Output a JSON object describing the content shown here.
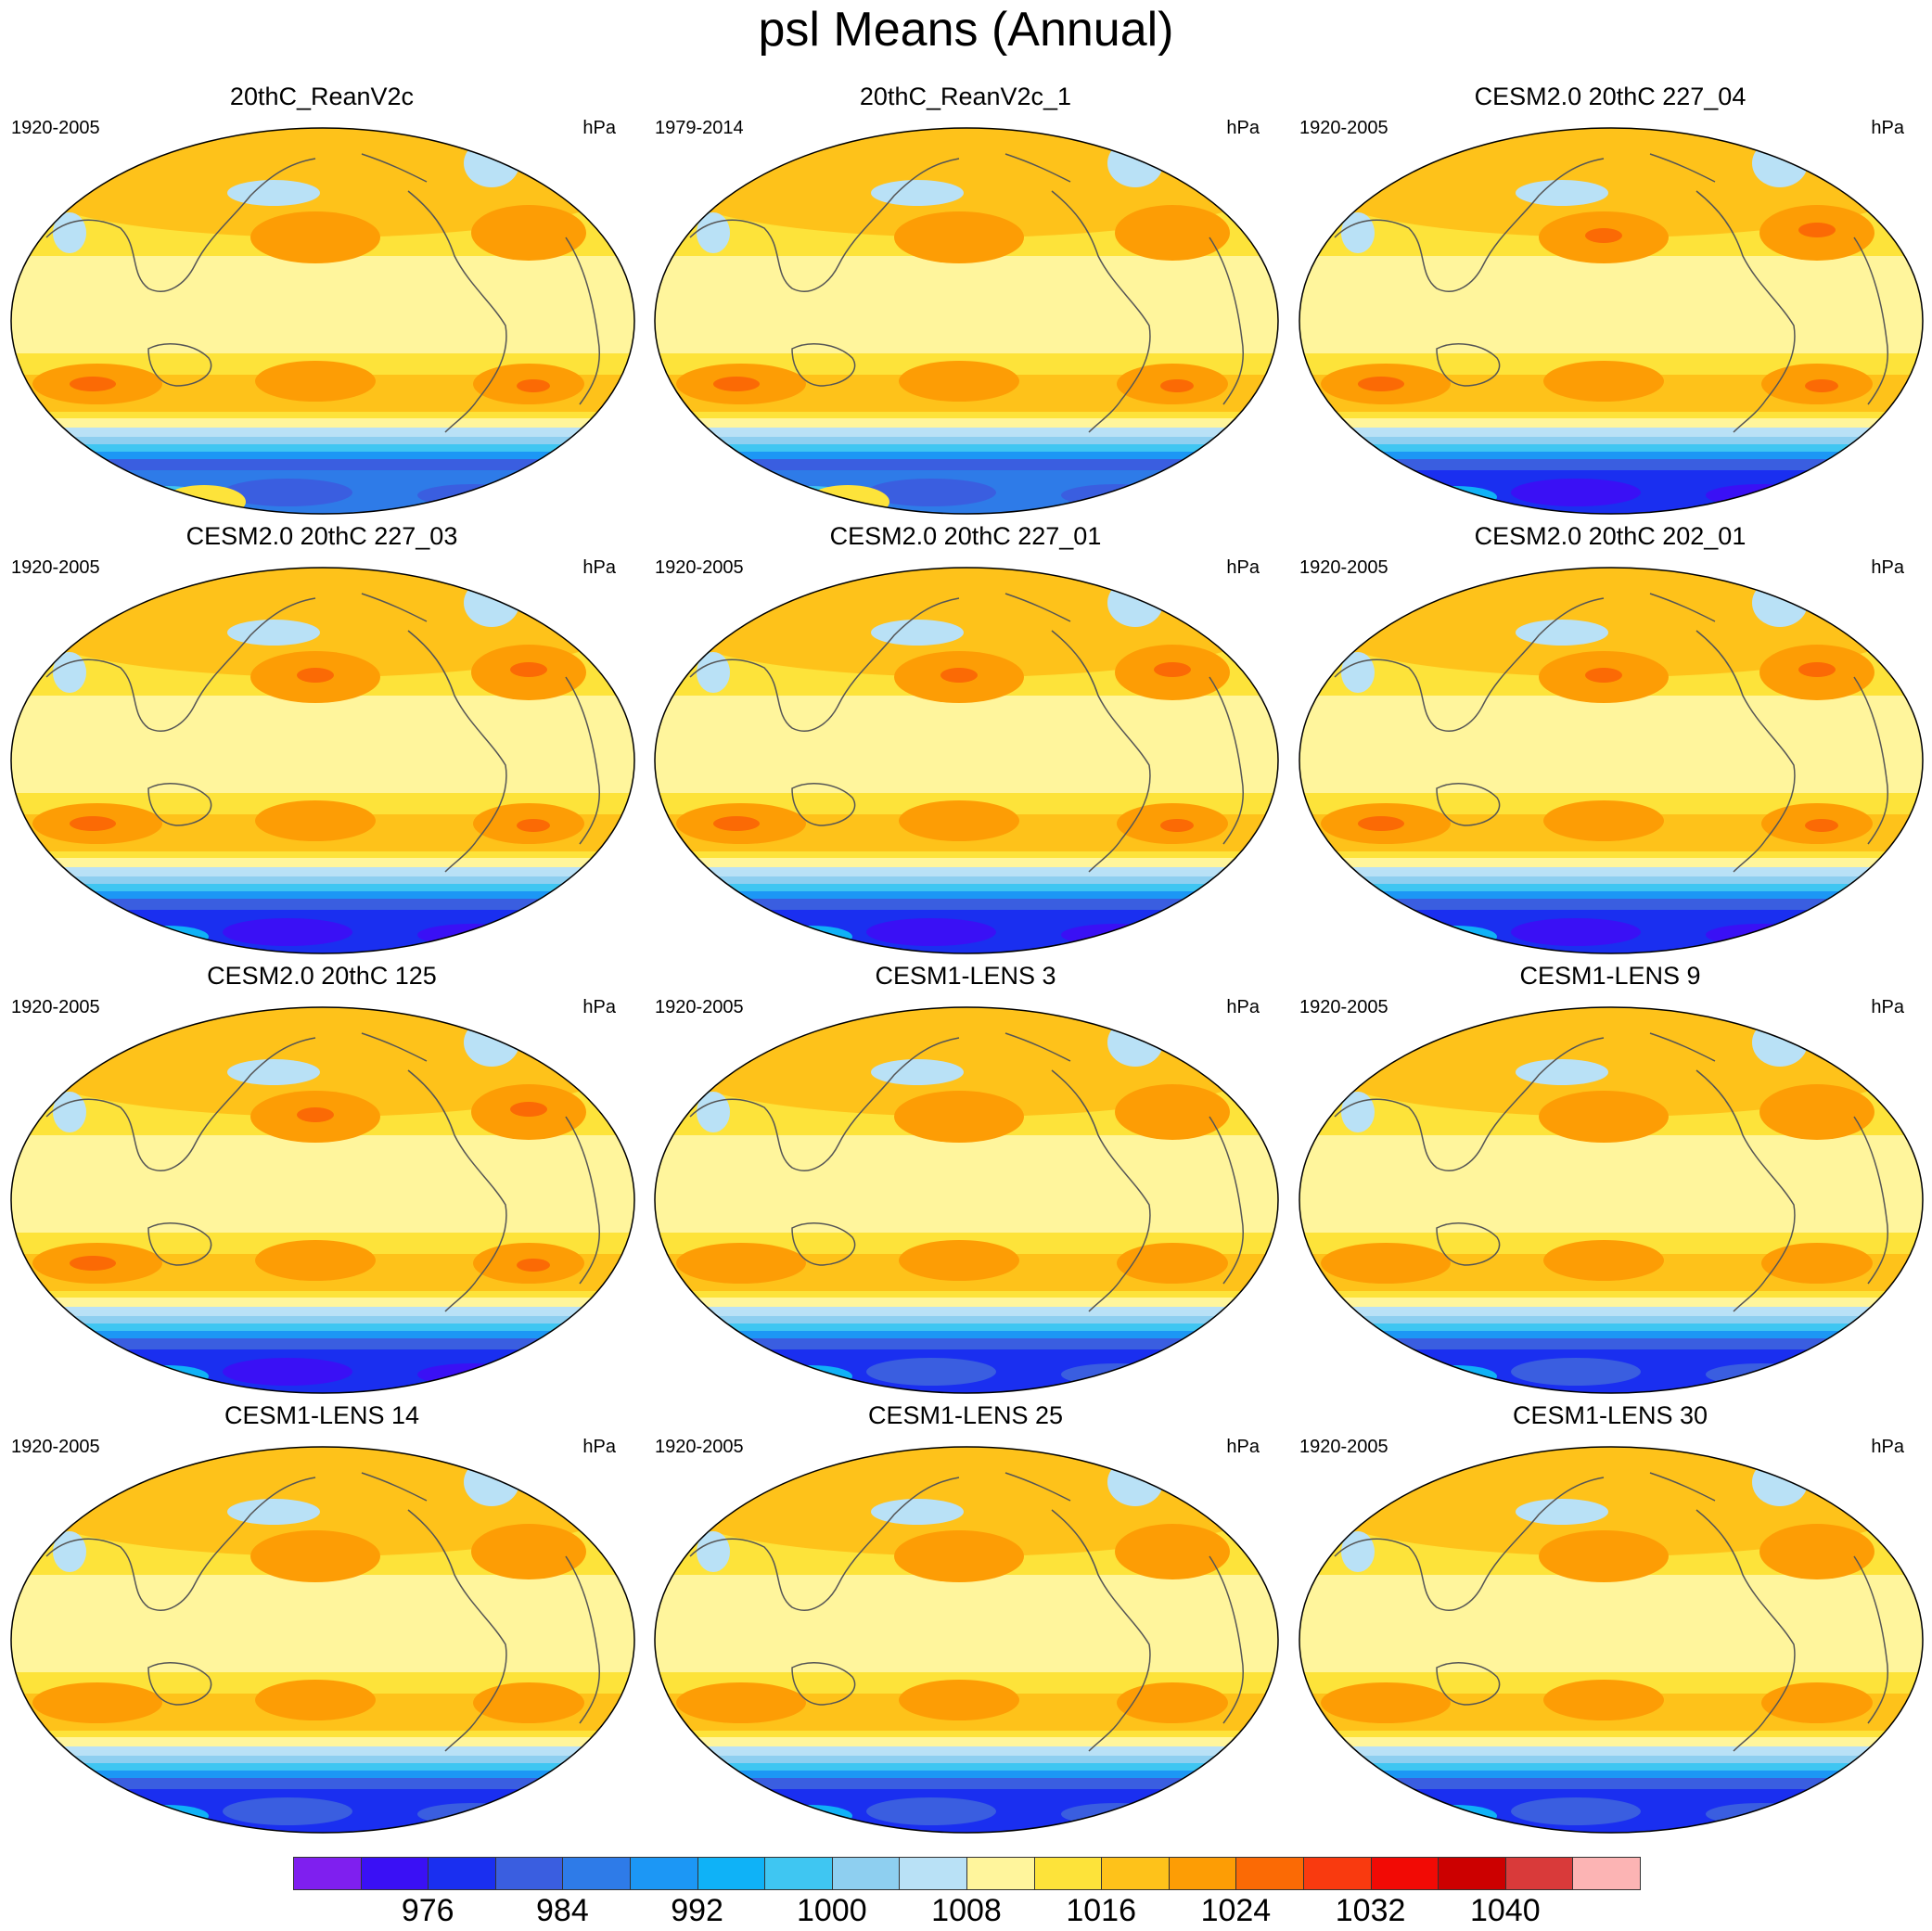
{
  "title": "psl Means (Annual)",
  "panels": [
    {
      "title": "20thC_ReanV2c",
      "period": "1920-2005",
      "units": "hPa",
      "variant": "rean"
    },
    {
      "title": "20thC_ReanV2c_1",
      "period": "1979-2014",
      "units": "hPa",
      "variant": "rean"
    },
    {
      "title": "CESM2.0 20thC 227_04",
      "period": "1920-2005",
      "units": "hPa",
      "variant": "cesm2"
    },
    {
      "title": "CESM2.0 20thC 227_03",
      "period": "1920-2005",
      "units": "hPa",
      "variant": "cesm2"
    },
    {
      "title": "CESM2.0 20thC 227_01",
      "period": "1920-2005",
      "units": "hPa",
      "variant": "cesm2"
    },
    {
      "title": "CESM2.0 20thC 202_01",
      "period": "1920-2005",
      "units": "hPa",
      "variant": "cesm2"
    },
    {
      "title": "CESM2.0 20thC 125",
      "period": "1920-2005",
      "units": "hPa",
      "variant": "cesm2"
    },
    {
      "title": "CESM1-LENS 3",
      "period": "1920-2005",
      "units": "hPa",
      "variant": "lens"
    },
    {
      "title": "CESM1-LENS 9",
      "period": "1920-2005",
      "units": "hPa",
      "variant": "lens"
    },
    {
      "title": "CESM1-LENS 14",
      "period": "1920-2005",
      "units": "hPa",
      "variant": "lens"
    },
    {
      "title": "CESM1-LENS 25",
      "period": "1920-2005",
      "units": "hPa",
      "variant": "lens"
    },
    {
      "title": "CESM1-LENS 30",
      "period": "1920-2005",
      "units": "hPa",
      "variant": "lens"
    }
  ],
  "colorbar": {
    "colors": [
      "#7f1fef",
      "#3a10f5",
      "#1a2ff0",
      "#3a5ee0",
      "#2e7be8",
      "#1c97f5",
      "#0fb2f7",
      "#3fc6f2",
      "#8ecff0",
      "#b9e1f6",
      "#fff59c",
      "#fde33a",
      "#fec21a",
      "#fd9d05",
      "#fb6a05",
      "#f93a0f",
      "#f20a05",
      "#cc0000",
      "#d93a3a",
      "#fcb4b4"
    ],
    "labels": [
      "976",
      "984",
      "992",
      "1000",
      "1008",
      "1016",
      "1024",
      "1032",
      "1040"
    ],
    "label_after_box": [
      2,
      4,
      6,
      8,
      10,
      12,
      14,
      16,
      18
    ]
  }
}
